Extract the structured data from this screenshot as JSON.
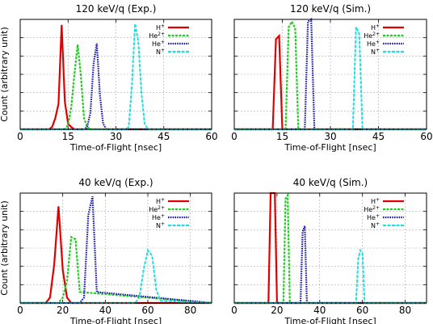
{
  "figure": {
    "shared_ylabel": "Count (arbitrary unit)",
    "shared_xlabel": "Time-of-Flight [nsec]"
  },
  "colors": {
    "H+": "#e00000",
    "He2+": "#22cc22",
    "He+": "#1a1aa8",
    "N+": "#22dddd"
  },
  "legend_labels": [
    "H+",
    "He2+",
    "He+",
    "N+"
  ],
  "chart_data": [
    {
      "type": "line",
      "title": "120 keV/q (Exp.)",
      "xlabel": "Time-of-Flight [nsec]",
      "ylabel": "Count (arbitrary unit)",
      "xlim": [
        0,
        60
      ],
      "ylim": [
        0,
        1.0
      ],
      "xticks": [
        0,
        15,
        30,
        45,
        60
      ],
      "grid": true,
      "legend": "top-right",
      "series": [
        {
          "name": "H+",
          "x": [
            0,
            9,
            10,
            11,
            12,
            13,
            14,
            15,
            16,
            17,
            18,
            20,
            60
          ],
          "y": [
            0,
            0,
            0.02,
            0.1,
            0.23,
            0.95,
            0.25,
            0.05,
            0.02,
            0,
            0,
            0,
            0
          ]
        },
        {
          "name": "He2+",
          "x": [
            0,
            14,
            15,
            16,
            17,
            18,
            19,
            20,
            21,
            22,
            60
          ],
          "y": [
            0,
            0,
            0.04,
            0.2,
            0.5,
            0.77,
            0.5,
            0.1,
            0.02,
            0,
            0
          ]
        },
        {
          "name": "He+",
          "x": [
            0,
            20,
            21,
            22,
            23,
            24,
            25,
            26,
            27,
            60
          ],
          "y": [
            0,
            0,
            0.02,
            0.15,
            0.6,
            0.78,
            0.3,
            0.05,
            0,
            0
          ]
        },
        {
          "name": "N+",
          "x": [
            0,
            33,
            34,
            35,
            36,
            37,
            38,
            39,
            40,
            60
          ],
          "y": [
            0,
            0,
            0.02,
            0.4,
            0.96,
            0.8,
            0.33,
            0.05,
            0,
            0
          ]
        }
      ]
    },
    {
      "type": "line",
      "title": "120 keV/q (Sim.)",
      "xlabel": "Time-of-Flight [nsec]",
      "ylabel": "",
      "xlim": [
        0,
        60
      ],
      "ylim": [
        0,
        1.0
      ],
      "xticks": [
        0,
        15,
        30,
        45,
        60
      ],
      "grid": true,
      "legend": "top-right",
      "series": [
        {
          "name": "H+",
          "x": [
            0,
            12,
            13,
            14,
            15,
            60
          ],
          "y": [
            0,
            0,
            0.82,
            0.85,
            0,
            0
          ]
        },
        {
          "name": "He2+",
          "x": [
            0,
            16,
            17,
            18,
            19,
            20,
            60
          ],
          "y": [
            0,
            0,
            0.93,
            0.98,
            0.92,
            0,
            0
          ]
        },
        {
          "name": "He+",
          "x": [
            0,
            22,
            23,
            24,
            25,
            60
          ],
          "y": [
            0,
            0,
            0.98,
            1.0,
            0,
            0
          ]
        },
        {
          "name": "N+",
          "x": [
            0,
            37,
            38,
            39,
            40,
            60
          ],
          "y": [
            0,
            0,
            0.93,
            0.87,
            0,
            0
          ]
        }
      ]
    },
    {
      "type": "line",
      "title": "40 keV/q (Exp.)",
      "xlabel": "Time-of-Flight [nsec]",
      "ylabel": "Count (arbitrary unit)",
      "xlim": [
        0,
        90
      ],
      "ylim": [
        0,
        1.0
      ],
      "xticks": [
        0,
        20,
        40,
        60,
        80
      ],
      "grid": true,
      "legend": "top-right",
      "series": [
        {
          "name": "H+",
          "x": [
            0,
            12,
            14,
            16,
            18,
            20,
            22,
            24,
            90
          ],
          "y": [
            0,
            0,
            0.05,
            0.35,
            0.88,
            0.3,
            0.05,
            0,
            0
          ]
        },
        {
          "name": "He2+",
          "x": [
            0,
            18,
            20,
            22,
            24,
            26,
            28,
            90
          ],
          "y": [
            0,
            0,
            0.05,
            0.2,
            0.6,
            0.58,
            0.1,
            0
          ]
        },
        {
          "name": "He+",
          "x": [
            0,
            28,
            30,
            32,
            34,
            36,
            90
          ],
          "y": [
            0,
            0,
            0.05,
            0.8,
            0.97,
            0.1,
            0
          ]
        },
        {
          "name": "N+",
          "x": [
            0,
            54,
            56,
            58,
            60,
            62,
            64,
            66,
            90
          ],
          "y": [
            0,
            0,
            0.05,
            0.3,
            0.48,
            0.43,
            0.12,
            0.02,
            0
          ]
        }
      ]
    },
    {
      "type": "line",
      "title": "40 keV/q (Sim.)",
      "xlabel": "Time-of-Flight [nsec]",
      "ylabel": "",
      "xlim": [
        0,
        90
      ],
      "ylim": [
        0,
        1.0
      ],
      "xticks": [
        0,
        20,
        40,
        60,
        80
      ],
      "grid": true,
      "legend": "top-right",
      "series": [
        {
          "name": "H+",
          "x": [
            0,
            16,
            17,
            18,
            19,
            20,
            90
          ],
          "y": [
            0,
            0,
            1.0,
            1.0,
            1.0,
            0,
            0
          ]
        },
        {
          "name": "He2+",
          "x": [
            0,
            23,
            24,
            25,
            26,
            90
          ],
          "y": [
            0,
            0,
            0.95,
            0.98,
            0,
            0
          ]
        },
        {
          "name": "He+",
          "x": [
            0,
            31,
            32,
            33,
            34,
            90
          ],
          "y": [
            0,
            0,
            0.65,
            0.7,
            0,
            0
          ]
        },
        {
          "name": "N+",
          "x": [
            0,
            57,
            58,
            59,
            60,
            61,
            90
          ],
          "y": [
            0,
            0,
            0.4,
            0.48,
            0.45,
            0,
            0
          ]
        }
      ]
    }
  ]
}
